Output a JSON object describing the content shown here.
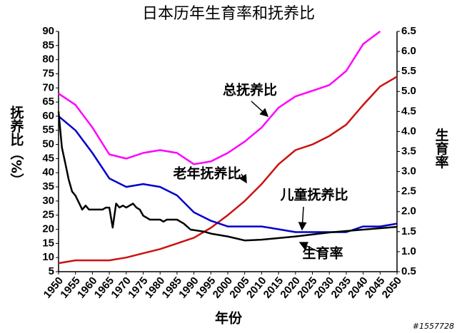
{
  "chart_data": {
    "type": "line",
    "title": "日本历年生育率和抚养比",
    "x_label": "年份",
    "y_label": "抚养比（%）",
    "y2_label": "生育率",
    "x": [
      1950,
      1955,
      1960,
      1965,
      1970,
      1975,
      1980,
      1985,
      1990,
      1995,
      2000,
      2005,
      2010,
      2015,
      2020,
      2025,
      2030,
      2035,
      2040,
      2045,
      2050
    ],
    "xlim": [
      1950,
      2050
    ],
    "xticks": [
      1950,
      1955,
      1960,
      1965,
      1970,
      1975,
      1980,
      1985,
      1990,
      1995,
      2000,
      2005,
      2010,
      2015,
      2020,
      2025,
      2030,
      2035,
      2040,
      2045,
      2050
    ],
    "ylim": [
      5,
      90
    ],
    "yticks": [
      5,
      10,
      15,
      20,
      25,
      30,
      35,
      40,
      45,
      50,
      55,
      60,
      65,
      70,
      75,
      80,
      85,
      90
    ],
    "y2lim": [
      0.5,
      6.5
    ],
    "y2ticks": [
      0.5,
      {
        "value": 1,
        "label": "1.0"
      },
      1.5,
      {
        "value": 2,
        "label": "2.0"
      },
      2.5,
      {
        "value": 3,
        "label": "3.0"
      },
      3.5,
      {
        "value": 4,
        "label": "4.0"
      },
      4.5,
      {
        "value": 5,
        "label": "5.0"
      },
      5.5,
      {
        "value": 6,
        "label": "6.0"
      },
      6.5
    ],
    "series": [
      {
        "name": "总抚养比",
        "color": "#ff00ff",
        "values": [
          68,
          64,
          56,
          46.5,
          45,
          47,
          48,
          47,
          43,
          44,
          47,
          51,
          56,
          63,
          67,
          69,
          71,
          76,
          85.5,
          90,
          null
        ]
      },
      {
        "name": "老年抚养比",
        "color": "#cc1111",
        "values": [
          8,
          9,
          9,
          9,
          10,
          11.5,
          13,
          15,
          17,
          20.5,
          25,
          30,
          36,
          43,
          48,
          50,
          53,
          57,
          64,
          70.5,
          74
        ]
      },
      {
        "name": "儿童抚养比",
        "color": "#0000cc",
        "values": [
          60,
          55,
          47,
          38,
          35,
          36,
          35,
          32,
          26,
          23,
          21,
          21,
          21,
          20,
          19,
          19,
          19,
          19,
          21,
          21,
          22
        ]
      },
      {
        "name": "生育率",
        "color": "#000000",
        "axis": "y2",
        "x": [
          1950,
          1951,
          1952,
          1953,
          1954,
          1955,
          1957,
          1958,
          1959,
          1963,
          1964,
          1965,
          1966,
          1967,
          1968,
          1969,
          1970,
          1971,
          1972,
          1973,
          1974,
          1975,
          1977,
          1980,
          1981,
          1982,
          1985,
          1987,
          1989,
          1993,
          1995,
          2000,
          2005,
          2010,
          2020,
          2030,
          2040,
          2050
        ],
        "values": [
          4.5,
          3.6,
          3.2,
          2.8,
          2.5,
          2.4,
          2.05,
          2.15,
          2.05,
          2.05,
          2.1,
          2.1,
          1.6,
          2.2,
          2.1,
          2.15,
          2.1,
          2.15,
          2.2,
          2.1,
          2.05,
          1.9,
          1.8,
          1.8,
          1.75,
          1.8,
          1.8,
          1.7,
          1.55,
          1.5,
          1.45,
          1.38,
          1.28,
          1.3,
          1.38,
          1.48,
          1.55,
          1.62
        ]
      }
    ],
    "annotations": [
      "总抚养比",
      "老年抚养比",
      "儿童抚养比",
      "生育率"
    ],
    "watermark": "#1557728"
  }
}
